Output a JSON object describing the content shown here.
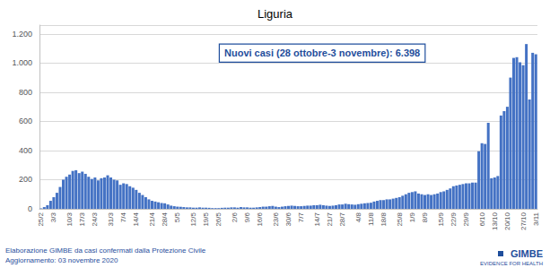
{
  "chart_data": {
    "type": "bar",
    "title": "Liguria",
    "annotation": "Nuovi casi (28 ottobre-3 novembre): 6.398",
    "footer": "Elaborazione GIMBE da casi confermati dalla Protezione Civile\nAggiornamento: 03 novembre 2020",
    "logo": [
      "GIMBE",
      "EVIDENCE FOR HEALTH"
    ],
    "color": "#4472C4",
    "grid": true,
    "ylim": [
      0,
      1260
    ],
    "yticks": [
      0,
      200,
      400,
      600,
      800,
      {
        "value": 1000,
        "label": "1.000"
      },
      {
        "value": 1200,
        "label": "1.200"
      }
    ],
    "categories": [
      "25/2",
      null,
      null,
      null,
      "3/3",
      null,
      null,
      null,
      null,
      "10/3",
      null,
      null,
      null,
      "17/3",
      null,
      null,
      null,
      "24/3",
      null,
      null,
      null,
      null,
      "31/3",
      null,
      null,
      null,
      "7/4",
      null,
      null,
      null,
      "14/4",
      null,
      null,
      null,
      null,
      "21/4",
      null,
      null,
      null,
      "28/4",
      null,
      null,
      null,
      "5/5",
      null,
      null,
      null,
      null,
      "12/5",
      null,
      null,
      null,
      "19/5",
      null,
      null,
      null,
      "26/5",
      null,
      null,
      null,
      null,
      "2/6",
      null,
      null,
      null,
      "9/6",
      null,
      null,
      null,
      "16/6",
      null,
      null,
      null,
      null,
      "23/6",
      null,
      null,
      null,
      "30/6",
      null,
      null,
      null,
      "7/7",
      null,
      null,
      null,
      null,
      "14/7",
      null,
      null,
      null,
      "21/7",
      null,
      null,
      null,
      "28/7",
      null,
      null,
      null,
      null,
      "4/8",
      null,
      null,
      null,
      "11/8",
      null,
      null,
      null,
      "18/8",
      null,
      null,
      null,
      null,
      "25/8",
      null,
      null,
      null,
      "1/9",
      null,
      null,
      null,
      "8/9",
      null,
      null,
      null,
      null,
      "15/9",
      null,
      null,
      null,
      "22/9",
      null,
      null,
      null,
      "29/9",
      null,
      null,
      null,
      null,
      "6/10",
      null,
      null,
      null,
      "13/10",
      null,
      null,
      null,
      "20/10",
      null,
      null,
      null,
      null,
      "27/10",
      null,
      null,
      null,
      "3/11"
    ],
    "values": [
      3,
      12,
      25,
      55,
      80,
      110,
      150,
      200,
      220,
      235,
      260,
      265,
      245,
      255,
      240,
      220,
      205,
      215,
      195,
      210,
      215,
      230,
      215,
      200,
      195,
      165,
      175,
      170,
      155,
      145,
      130,
      110,
      95,
      80,
      65,
      55,
      50,
      45,
      40,
      38,
      30,
      22,
      18,
      15,
      14,
      12,
      10,
      10,
      8,
      8,
      10,
      8,
      8,
      7,
      5,
      5,
      5,
      7,
      8,
      8,
      10,
      10,
      8,
      12,
      10,
      10,
      8,
      8,
      10,
      12,
      15,
      15,
      18,
      20,
      15,
      12,
      15,
      18,
      20,
      22,
      20,
      18,
      18,
      20,
      22,
      22,
      25,
      25,
      28,
      25,
      22,
      20,
      22,
      25,
      30,
      30,
      35,
      32,
      30,
      28,
      32,
      35,
      38,
      40,
      42,
      50,
      55,
      60,
      60,
      65,
      65,
      70,
      75,
      80,
      90,
      100,
      110,
      115,
      120,
      105,
      100,
      95,
      100,
      95,
      100,
      105,
      115,
      120,
      130,
      140,
      155,
      160,
      165,
      170,
      175,
      175,
      180,
      180,
      395,
      450,
      445,
      590,
      210,
      215,
      225,
      640,
      670,
      700,
      900,
      1035,
      1040,
      1005,
      985,
      1130,
      750,
      1070,
      1060
    ]
  }
}
